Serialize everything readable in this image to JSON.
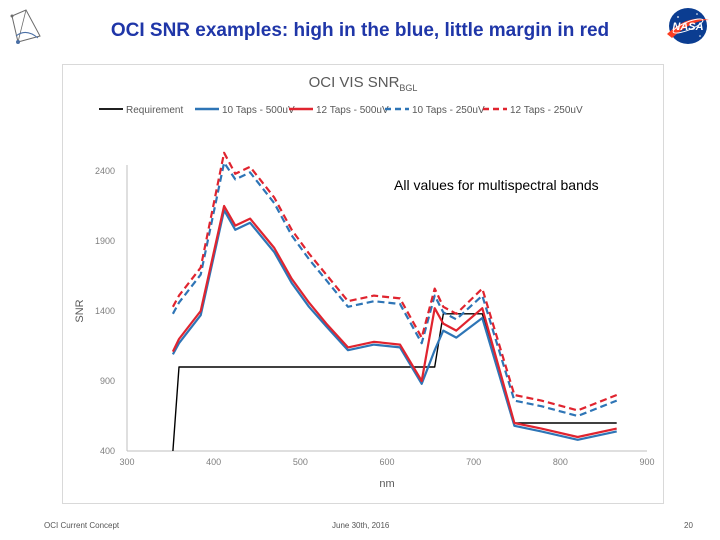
{
  "slide": {
    "title": "OCI SNR examples: high in the blue, little margin in red",
    "callout": "All values for multispectral bands",
    "footer_left": "OCI Current Concept",
    "footer_center": "June 30th, 2016",
    "page_number": "20"
  },
  "colors": {
    "title": "#1f36a8",
    "requirement": "#000000",
    "blue": "#2e75b6",
    "red": "#e0242f"
  },
  "icons": {
    "top_left": "orbit-diagram-icon",
    "top_right": "nasa-logo"
  },
  "chart_data": {
    "type": "line",
    "title": "OCI VIS SNR",
    "title_subscript": "BGL",
    "xlabel": "nm",
    "ylabel": "SNR",
    "xlim": [
      300,
      900
    ],
    "ylim": [
      400,
      2400
    ],
    "x_ticks": [
      300,
      400,
      500,
      600,
      700,
      800,
      900
    ],
    "y_ticks": [
      400,
      900,
      1400,
      1900,
      2400
    ],
    "grid": false,
    "legend_position": "top",
    "series": [
      {
        "name": "Requirement",
        "color": "#000000",
        "dashed": false,
        "width": 1.4,
        "x": [
          353,
          360,
          412,
          442,
          470,
          490,
          510,
          530,
          555,
          585,
          615,
          640,
          655,
          665,
          680,
          710,
          747,
          778,
          820,
          865
        ],
        "y": [
          400,
          1000,
          1000,
          1000,
          1000,
          1000,
          1000,
          1000,
          1000,
          1000,
          1000,
          1000,
          1000,
          1380,
          1380,
          1380,
          600,
          600,
          600,
          600
        ]
      },
      {
        "name": "10 Taps - 500uV",
        "color": "#2e75b6",
        "dashed": false,
        "width": 2.2,
        "x": [
          353,
          360,
          385,
          412,
          425,
          442,
          470,
          490,
          510,
          530,
          555,
          585,
          615,
          640,
          655,
          665,
          680,
          710,
          747,
          778,
          820,
          865
        ],
        "y": [
          1090,
          1170,
          1370,
          2120,
          1980,
          2030,
          1820,
          1600,
          1430,
          1290,
          1120,
          1160,
          1140,
          880,
          1120,
          1260,
          1210,
          1350,
          580,
          540,
          480,
          540
        ]
      },
      {
        "name": "12 Taps - 500uV",
        "color": "#e0242f",
        "dashed": false,
        "width": 2.2,
        "x": [
          353,
          360,
          385,
          412,
          425,
          442,
          470,
          490,
          510,
          530,
          555,
          585,
          615,
          640,
          655,
          665,
          680,
          710,
          747,
          778,
          820,
          865
        ],
        "y": [
          1110,
          1200,
          1400,
          2150,
          2010,
          2060,
          1850,
          1630,
          1460,
          1310,
          1140,
          1180,
          1160,
          900,
          1420,
          1310,
          1260,
          1420,
          600,
          560,
          500,
          560
        ]
      },
      {
        "name": "10 Taps - 250uV",
        "color": "#2e75b6",
        "dashed": true,
        "width": 2.2,
        "x": [
          353,
          360,
          385,
          412,
          425,
          442,
          470,
          490,
          510,
          530,
          555,
          585,
          615,
          640,
          655,
          665,
          680,
          710,
          747,
          778,
          820,
          865
        ],
        "y": [
          1380,
          1460,
          1660,
          2460,
          2340,
          2390,
          2170,
          1940,
          1770,
          1620,
          1430,
          1470,
          1450,
          1170,
          1510,
          1390,
          1340,
          1510,
          760,
          720,
          650,
          760
        ]
      },
      {
        "name": "12 Taps - 250uV",
        "color": "#e0242f",
        "dashed": true,
        "width": 2.2,
        "x": [
          353,
          360,
          385,
          412,
          425,
          442,
          470,
          490,
          510,
          530,
          555,
          585,
          615,
          640,
          655,
          665,
          680,
          710,
          747,
          778,
          820,
          865
        ],
        "y": [
          1430,
          1510,
          1710,
          2530,
          2380,
          2430,
          2210,
          1980,
          1810,
          1660,
          1470,
          1510,
          1490,
          1210,
          1560,
          1430,
          1380,
          1560,
          800,
          760,
          690,
          800
        ]
      }
    ]
  }
}
